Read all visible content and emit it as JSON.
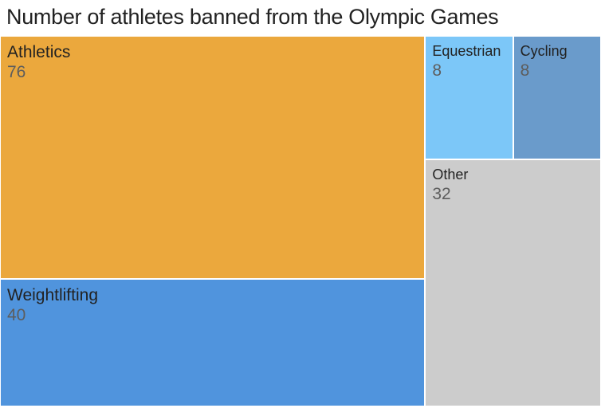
{
  "title": "Number of athletes banned from the Olympic Games",
  "chart_data": {
    "type": "treemap",
    "title": "Number of athletes banned from the Olympic Games",
    "items": [
      {
        "label": "Athletics",
        "value": 76,
        "color": "#EBA83D"
      },
      {
        "label": "Weightlifting",
        "value": 40,
        "color": "#5094DD"
      },
      {
        "label": "Equestrian",
        "value": 8,
        "color": "#7CC7F8"
      },
      {
        "label": "Cycling",
        "value": 8,
        "color": "#6A9BCB"
      },
      {
        "label": "Other",
        "value": 32,
        "color": "#CCCCCC"
      }
    ]
  }
}
